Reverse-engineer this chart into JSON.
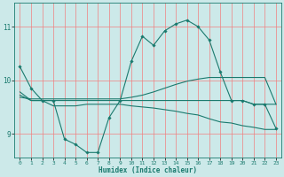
{
  "xlabel": "Humidex (Indice chaleur)",
  "xlim": [
    -0.5,
    23.5
  ],
  "ylim": [
    8.55,
    11.45
  ],
  "yticks": [
    9,
    10,
    11
  ],
  "xticks": [
    0,
    1,
    2,
    3,
    4,
    5,
    6,
    7,
    8,
    9,
    10,
    11,
    12,
    13,
    14,
    15,
    16,
    17,
    18,
    19,
    20,
    21,
    22,
    23
  ],
  "background_color": "#cce9e9",
  "grid_color": "#f08080",
  "line_color": "#1a7a6e",
  "line1_y": [
    10.25,
    9.85,
    9.62,
    9.62,
    8.9,
    8.8,
    8.65,
    8.65,
    9.3,
    9.62,
    10.35,
    10.82,
    10.65,
    10.92,
    11.05,
    11.12,
    11.0,
    10.75,
    10.15,
    9.62,
    9.62,
    9.55,
    9.55,
    9.1
  ],
  "line2_y": [
    9.78,
    9.62,
    9.62,
    9.62,
    9.62,
    9.62,
    9.62,
    9.62,
    9.62,
    9.62,
    9.62,
    9.62,
    9.62,
    9.62,
    9.62,
    9.62,
    9.62,
    9.62,
    9.62,
    9.62,
    9.62,
    9.55,
    9.55,
    9.55
  ],
  "line3_y": [
    9.72,
    9.62,
    9.62,
    9.52,
    9.52,
    9.52,
    9.55,
    9.55,
    9.55,
    9.55,
    9.52,
    9.5,
    9.48,
    9.45,
    9.42,
    9.38,
    9.35,
    9.28,
    9.22,
    9.2,
    9.15,
    9.12,
    9.08,
    9.08
  ],
  "line4_y": [
    9.68,
    9.65,
    9.65,
    9.65,
    9.65,
    9.65,
    9.65,
    9.65,
    9.65,
    9.65,
    9.68,
    9.72,
    9.78,
    9.85,
    9.92,
    9.98,
    10.02,
    10.05,
    10.05,
    10.05,
    10.05,
    10.05,
    10.05,
    9.55
  ],
  "x": [
    0,
    1,
    2,
    3,
    4,
    5,
    6,
    7,
    8,
    9,
    10,
    11,
    12,
    13,
    14,
    15,
    16,
    17,
    18,
    19,
    20,
    21,
    22,
    23
  ]
}
